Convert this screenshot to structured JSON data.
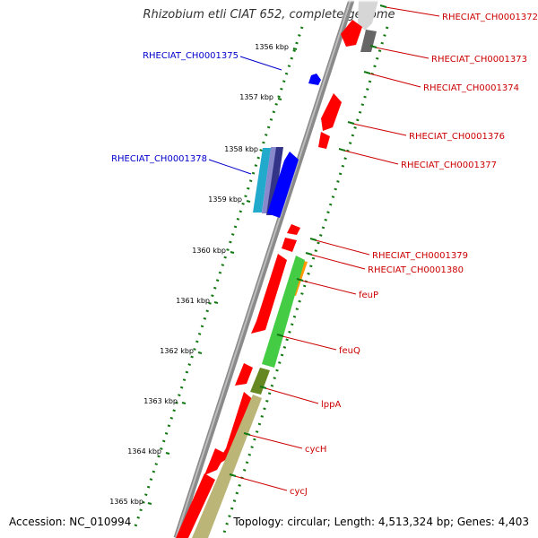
{
  "title": "Rhizobium etli CIAT 652, complete genome",
  "footer": {
    "accession": "Accession: NC_010994",
    "summary": "Topology: circular; Length: 4,513,324 bp; Genes: 4,403"
  },
  "ruler": {
    "unit": "kbp",
    "labels": [
      "1356 kbp",
      "1357 kbp",
      "1358 kbp",
      "1359 kbp",
      "1360 kbp",
      "1361 kbp",
      "1362 kbp",
      "1363 kbp",
      "1364 kbp",
      "1365 kbp"
    ]
  },
  "colors": {
    "forward_label": "#cc0000",
    "reverse_label": "#0000cc",
    "gene_red": "#ff0000",
    "gene_blue": "#0000ff",
    "gene_green": "#44cc44",
    "gene_olive": "#668822",
    "gene_khaki": "#bbb577",
    "gene_orange": "#ff9900",
    "gene_gray": "#666666",
    "ruler_green": "#117711"
  },
  "genes": {
    "forward": [
      {
        "name": "RHECIAT_CH0001372"
      },
      {
        "name": "RHECIAT_CH0001373"
      },
      {
        "name": "RHECIAT_CH0001374"
      },
      {
        "name": "RHECIAT_CH0001376"
      },
      {
        "name": "RHECIAT_CH0001377"
      },
      {
        "name": "RHECIAT_CH0001379"
      },
      {
        "name": "RHECIAT_CH0001380"
      },
      {
        "name": "feuP"
      },
      {
        "name": "feuQ"
      },
      {
        "name": "lppA"
      },
      {
        "name": "cycH"
      },
      {
        "name": "cycJ"
      }
    ],
    "reverse": [
      {
        "name": "RHECIAT_CH0001375"
      },
      {
        "name": "RHECIAT_CH0001378"
      }
    ]
  }
}
